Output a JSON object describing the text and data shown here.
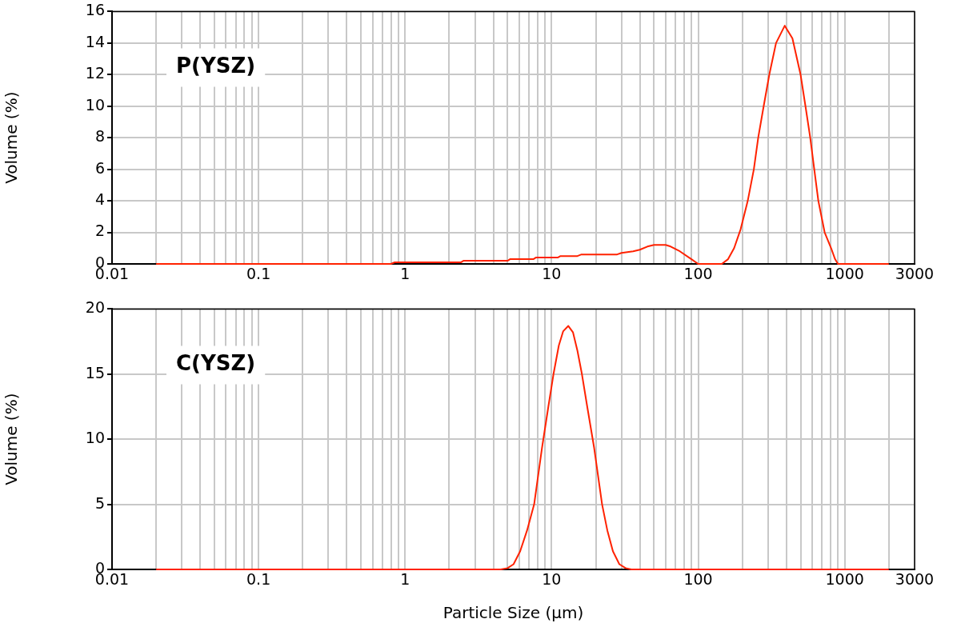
{
  "chart_data": [
    {
      "type": "line",
      "ylabel": "Volume (%)",
      "annotations": [
        "P(YSZ)"
      ],
      "series": [
        {
          "color": "#ff2200",
          "x": [
            0.02,
            0.8,
            0.85,
            2.4,
            2.5,
            5,
            5.2,
            7.5,
            7.8,
            11,
            11.5,
            15,
            16,
            28,
            30,
            36,
            40,
            45,
            50,
            60,
            65,
            75,
            90,
            100,
            145,
            160,
            176,
            195,
            218,
            240,
            257,
            280,
            306,
            340,
            390,
            440,
            500,
            540,
            582,
            620,
            661,
            730,
            808,
            860,
            900,
            2000
          ],
          "values": [
            0,
            0,
            0.1,
            0.1,
            0.2,
            0.2,
            0.3,
            0.3,
            0.4,
            0.4,
            0.5,
            0.5,
            0.6,
            0.6,
            0.7,
            0.8,
            0.9,
            1.1,
            1.2,
            1.2,
            1.1,
            0.8,
            0.3,
            0,
            0,
            0.3,
            1,
            2.2,
            4,
            6,
            8,
            10,
            12,
            14,
            15.1,
            14.3,
            12,
            10,
            8,
            6,
            4,
            2,
            1,
            0.3,
            0,
            0
          ]
        }
      ],
      "log": "x",
      "grid": true,
      "marker": "none",
      "line_style": "solid",
      "legend": false,
      "xlim": [
        0.01,
        3000
      ],
      "xticks": [
        0.01,
        {
          "value": 0.02,
          "label": null
        },
        {
          "value": 0.03,
          "label": null
        },
        {
          "value": 0.04,
          "label": null
        },
        {
          "value": 0.05,
          "label": null
        },
        {
          "value": 0.06,
          "label": null
        },
        {
          "value": 0.07,
          "label": null
        },
        {
          "value": 0.08,
          "label": null
        },
        {
          "value": 0.09,
          "label": null
        },
        0.1,
        {
          "value": 0.2,
          "label": null
        },
        {
          "value": 0.3,
          "label": null
        },
        {
          "value": 0.4,
          "label": null
        },
        {
          "value": 0.5,
          "label": null
        },
        {
          "value": 0.6,
          "label": null
        },
        {
          "value": 0.7,
          "label": null
        },
        {
          "value": 0.8,
          "label": null
        },
        {
          "value": 0.9,
          "label": null
        },
        1,
        {
          "value": 2,
          "label": null
        },
        {
          "value": 3,
          "label": null
        },
        {
          "value": 4,
          "label": null
        },
        {
          "value": 5,
          "label": null
        },
        {
          "value": 6,
          "label": null
        },
        {
          "value": 7,
          "label": null
        },
        {
          "value": 8,
          "label": null
        },
        {
          "value": 9,
          "label": null
        },
        10,
        {
          "value": 20,
          "label": null
        },
        {
          "value": 30,
          "label": null
        },
        {
          "value": 40,
          "label": null
        },
        {
          "value": 50,
          "label": null
        },
        {
          "value": 60,
          "label": null
        },
        {
          "value": 70,
          "label": null
        },
        {
          "value": 80,
          "label": null
        },
        {
          "value": 90,
          "label": null
        },
        100,
        {
          "value": 200,
          "label": null
        },
        {
          "value": 300,
          "label": null
        },
        {
          "value": 400,
          "label": null
        },
        {
          "value": 500,
          "label": null
        },
        {
          "value": 600,
          "label": null
        },
        {
          "value": 700,
          "label": null
        },
        {
          "value": 800,
          "label": null
        },
        {
          "value": 900,
          "label": null
        },
        1000,
        {
          "value": 2000,
          "label": null
        },
        3000
      ],
      "ylim": [
        0,
        16
      ],
      "yticks": [
        0,
        2,
        4,
        6,
        8,
        10,
        12,
        14,
        16
      ]
    },
    {
      "type": "line",
      "ylabel": "Volume (%)",
      "xlabel": "Particle Size (µm)",
      "annotations": [
        "C(YSZ)"
      ],
      "series": [
        {
          "color": "#ff2200",
          "x": [
            0.02,
            4.5,
            5,
            5.5,
            6.1,
            6.8,
            7.6,
            8.6,
            9.5,
            10.3,
            11.2,
            12,
            13,
            14,
            15,
            16.1,
            17.5,
            19.5,
            22.1,
            24,
            26.2,
            29,
            32,
            35,
            2000
          ],
          "values": [
            0,
            0,
            0.1,
            0.4,
            1.4,
            3,
            5,
            9.35,
            12.5,
            15,
            17.2,
            18.3,
            18.7,
            18.2,
            16.8,
            15,
            12.5,
            9.35,
            5,
            3,
            1.4,
            0.4,
            0.1,
            0,
            0
          ]
        }
      ],
      "log": "x",
      "grid": true,
      "marker": "none",
      "line_style": "solid",
      "legend": false,
      "xlim": [
        0.01,
        3000
      ],
      "xticks": [
        0.01,
        {
          "value": 0.02,
          "label": null
        },
        {
          "value": 0.03,
          "label": null
        },
        {
          "value": 0.04,
          "label": null
        },
        {
          "value": 0.05,
          "label": null
        },
        {
          "value": 0.06,
          "label": null
        },
        {
          "value": 0.07,
          "label": null
        },
        {
          "value": 0.08,
          "label": null
        },
        {
          "value": 0.09,
          "label": null
        },
        0.1,
        {
          "value": 0.2,
          "label": null
        },
        {
          "value": 0.3,
          "label": null
        },
        {
          "value": 0.4,
          "label": null
        },
        {
          "value": 0.5,
          "label": null
        },
        {
          "value": 0.6,
          "label": null
        },
        {
          "value": 0.7,
          "label": null
        },
        {
          "value": 0.8,
          "label": null
        },
        {
          "value": 0.9,
          "label": null
        },
        1,
        {
          "value": 2,
          "label": null
        },
        {
          "value": 3,
          "label": null
        },
        {
          "value": 4,
          "label": null
        },
        {
          "value": 5,
          "label": null
        },
        {
          "value": 6,
          "label": null
        },
        {
          "value": 7,
          "label": null
        },
        {
          "value": 8,
          "label": null
        },
        {
          "value": 9,
          "label": null
        },
        10,
        {
          "value": 20,
          "label": null
        },
        {
          "value": 30,
          "label": null
        },
        {
          "value": 40,
          "label": null
        },
        {
          "value": 50,
          "label": null
        },
        {
          "value": 60,
          "label": null
        },
        {
          "value": 70,
          "label": null
        },
        {
          "value": 80,
          "label": null
        },
        {
          "value": 90,
          "label": null
        },
        100,
        {
          "value": 200,
          "label": null
        },
        {
          "value": 300,
          "label": null
        },
        {
          "value": 400,
          "label": null
        },
        {
          "value": 500,
          "label": null
        },
        {
          "value": 600,
          "label": null
        },
        {
          "value": 700,
          "label": null
        },
        {
          "value": 800,
          "label": null
        },
        {
          "value": 900,
          "label": null
        },
        1000,
        {
          "value": 2000,
          "label": null
        },
        3000
      ],
      "ylim": [
        0,
        20
      ],
      "yticks": [
        0,
        5,
        10,
        15,
        20
      ]
    }
  ]
}
